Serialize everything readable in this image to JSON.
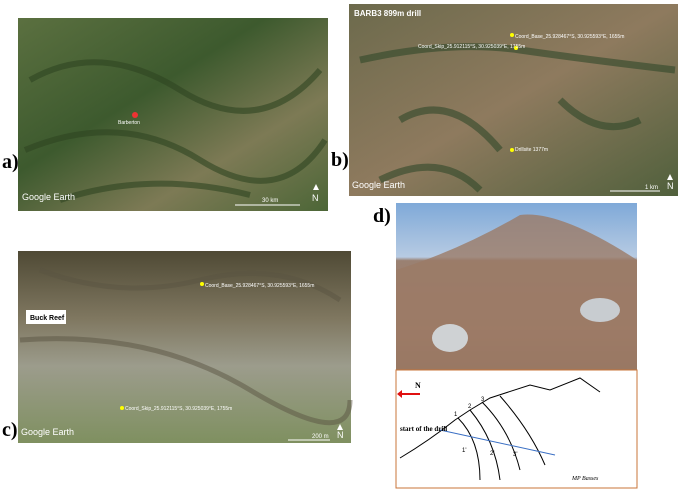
{
  "panels": [
    {
      "label": "a)",
      "source": "Google Earth",
      "scale": "30 km",
      "north": "N",
      "places": [
        "Barberton"
      ]
    },
    {
      "label": "b)",
      "title": "BARB3 899m drill",
      "source": "Google Earth",
      "scale": "1 km",
      "north": "N",
      "places": [
        "Coord_Base_25.928467°S, 30.925593°E, 1655m",
        "Coord_Skip_25.912115°S, 30.925039°E, 1755m",
        "Drillsite 1377m"
      ]
    },
    {
      "label": "c)",
      "title": "Buck Reef",
      "source": "Google Earth",
      "scale": "200 m",
      "north": "N",
      "places": [
        "Coord_Base_25.928467°S, 30.925593°E, 1655m",
        "Coord_Skip_25.912115°S, 30.925039°E, 1755m"
      ]
    },
    {
      "label": "d)",
      "north": "N",
      "drill": "start of the drill",
      "marks": [
        "1",
        "2",
        "3",
        "1'",
        "2'",
        "3'"
      ],
      "credit": "MP Basses"
    }
  ]
}
